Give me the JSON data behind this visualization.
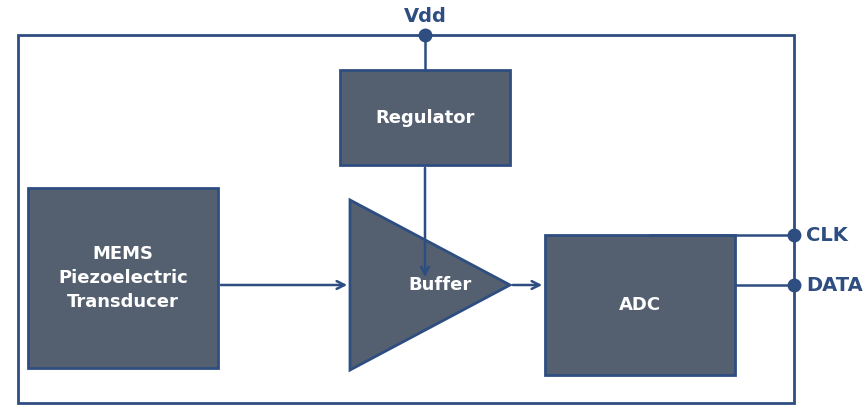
{
  "bg_color": "#ffffff",
  "border_color": "#2e4d80",
  "box_fill": "#546070",
  "box_text_color": "#ffffff",
  "label_color": "#2e4d80",
  "arrow_color": "#2e4d80",
  "dot_color": "#2e4d80",
  "vdd_label": "Vdd",
  "clk_label": "CLK",
  "data_label": "DATA",
  "regulator_label": "Regulator",
  "mems_label": "MEMS\nPiezoelectric\nTransducer",
  "buffer_label": "Buffer",
  "adc_label": "ADC",
  "font_size_boxes": 13,
  "font_size_labels": 14,
  "border_lw": 2.0,
  "arrow_lw": 1.8,
  "figw": 8.66,
  "figh": 4.19
}
